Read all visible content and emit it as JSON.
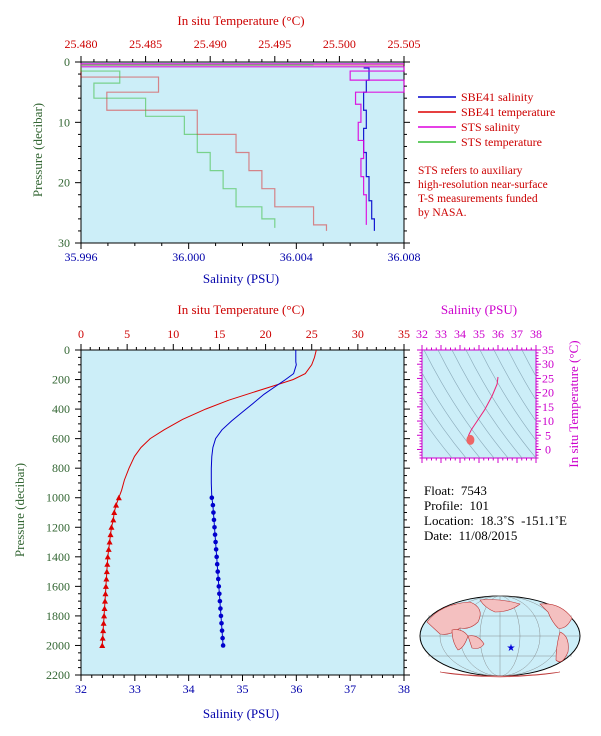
{
  "top_chart": {
    "top_axis_label": "In situ Temperature (°C)",
    "bottom_axis_label": "Salinity (PSU)",
    "left_axis_label": "Pressure (decibar)",
    "top_ticks": [
      "25.480",
      "25.485",
      "25.490",
      "25.495",
      "25.500",
      "25.505"
    ],
    "bottom_ticks": [
      "35.996",
      "36.000",
      "36.004",
      "36.008"
    ],
    "left_ticks": [
      "0",
      "10",
      "20",
      "30"
    ],
    "legend": [
      {
        "label": "SBE41 salinity",
        "color": "#0000cc"
      },
      {
        "label": "SBE41 temperature",
        "color": "#dd0000"
      },
      {
        "label": "STS salinity",
        "color": "#dd00dd"
      },
      {
        "label": "STS temperature",
        "color": "#33bb33"
      }
    ],
    "note_lines": [
      "STS refers to auxiliary",
      "high-resolution near-surface",
      "T-S measurements funded",
      "by NASA."
    ]
  },
  "main_chart": {
    "top_axis_label": "In situ Temperature (°C)",
    "bottom_axis_label": "Salinity (PSU)",
    "left_axis_label": "Pressure (decibar)",
    "top_ticks": [
      "0",
      "5",
      "10",
      "15",
      "20",
      "25",
      "30",
      "35"
    ],
    "bottom_ticks": [
      "32",
      "33",
      "34",
      "35",
      "36",
      "37",
      "38"
    ],
    "left_ticks": [
      "0",
      "200",
      "400",
      "600",
      "800",
      "1000",
      "1200",
      "1400",
      "1600",
      "1800",
      "2000",
      "2200"
    ]
  },
  "ts_chart": {
    "top_axis_label": "Salinity (PSU)",
    "right_axis_label": "In situ Temperature (°C)",
    "top_ticks": [
      "32",
      "33",
      "34",
      "35",
      "36",
      "37",
      "38"
    ],
    "right_ticks": [
      "0",
      "5",
      "10",
      "15",
      "20",
      "25",
      "30",
      "35"
    ]
  },
  "float_info": {
    "float": "Float:  7543",
    "profile": "Profile:  101",
    "location": "Location:  18.3˚S  -151.1˚E",
    "date": "Date:  11/08/2015"
  },
  "colors": {
    "plot_bg": "#cceef8",
    "temperature": "#dd0000",
    "salinity": "#0000cc",
    "sts_salinity": "#dd00dd",
    "sts_temperature": "#33bb33",
    "top_axis_text": "#cc0000",
    "bottom_axis_text": "#0000aa",
    "pressure_axis_text": "#336633",
    "ts_axis_text": "#cc00cc"
  },
  "chart_data": [
    {
      "type": "line",
      "title": "",
      "xlabel": "Salinity (PSU)",
      "x2label": "In situ Temperature (°C)",
      "ylabel": "Pressure (decibar)",
      "xlim": [
        35.996,
        36.008
      ],
      "x2lim": [
        25.48,
        25.505
      ],
      "ylim": [
        30,
        0
      ],
      "series": [
        {
          "name": "SBE41 salinity",
          "axis": "salinity",
          "points": [
            [
              36.0065,
              1
            ],
            [
              36.0067,
              3
            ],
            [
              36.0066,
              5
            ],
            [
              36.0065,
              8
            ],
            [
              36.0066,
              11
            ],
            [
              36.0065,
              15
            ],
            [
              36.0066,
              19
            ],
            [
              36.0067,
              23
            ],
            [
              36.0068,
              26
            ],
            [
              36.0069,
              28
            ]
          ]
        },
        {
          "name": "SBE41 temperature",
          "axis": "temperature",
          "points": [
            [
              25.505,
              0.5
            ],
            [
              25.48,
              2.5
            ],
            [
              25.486,
              5
            ],
            [
              25.482,
              8
            ],
            [
              25.489,
              12
            ],
            [
              25.492,
              15
            ],
            [
              25.493,
              18
            ],
            [
              25.494,
              21
            ],
            [
              25.495,
              24
            ],
            [
              25.498,
              27
            ],
            [
              25.499,
              28
            ]
          ]
        },
        {
          "name": "STS salinity",
          "axis": "salinity",
          "points": [
            [
              36.008,
              0.3
            ],
            [
              35.996,
              0.8
            ],
            [
              36.008,
              1.5
            ],
            [
              36.006,
              3
            ],
            [
              36.008,
              5
            ],
            [
              36.0062,
              7
            ],
            [
              36.0064,
              10
            ],
            [
              36.0063,
              13
            ],
            [
              36.0065,
              16
            ],
            [
              36.0064,
              19
            ],
            [
              36.0065,
              22
            ],
            [
              36.0066,
              25
            ],
            [
              36.0066,
              27
            ]
          ]
        },
        {
          "name": "STS temperature",
          "axis": "temperature",
          "points": [
            [
              25.498,
              0.5
            ],
            [
              25.48,
              1.5
            ],
            [
              25.483,
              3.5
            ],
            [
              25.481,
              6
            ],
            [
              25.485,
              9
            ],
            [
              25.488,
              12
            ],
            [
              25.489,
              15
            ],
            [
              25.49,
              18
            ],
            [
              25.491,
              21
            ],
            [
              25.492,
              24
            ],
            [
              25.494,
              26
            ],
            [
              25.495,
              27.5
            ]
          ]
        }
      ],
      "grid": false,
      "legend_position": "right"
    },
    {
      "type": "line",
      "title": "",
      "xlabel": "Salinity (PSU)",
      "x2label": "In situ Temperature (°C)",
      "ylabel": "Pressure (decibar)",
      "xlim": [
        32,
        38
      ],
      "x2lim": [
        0,
        35
      ],
      "ylim": [
        2200,
        0
      ],
      "series": [
        {
          "name": "Temperature",
          "axis": "temperature",
          "points": [
            [
              25.5,
              0
            ],
            [
              25.3,
              50
            ],
            [
              25.0,
              100
            ],
            [
              24.3,
              160
            ],
            [
              23.0,
              200
            ],
            [
              21.0,
              240
            ],
            [
              18.5,
              290
            ],
            [
              16.0,
              340
            ],
            [
              13.5,
              400
            ],
            [
              11.0,
              470
            ],
            [
              9.0,
              540
            ],
            [
              7.5,
              600
            ],
            [
              6.5,
              660
            ],
            [
              5.8,
              720
            ],
            [
              5.2,
              800
            ],
            [
              4.7,
              880
            ],
            [
              4.4,
              950
            ],
            [
              4.1,
              1000
            ],
            [
              3.8,
              1050
            ],
            [
              3.6,
              1100
            ],
            [
              3.5,
              1150
            ],
            [
              3.3,
              1200
            ],
            [
              3.2,
              1250
            ],
            [
              3.1,
              1300
            ],
            [
              3.0,
              1350
            ],
            [
              2.9,
              1400
            ],
            [
              2.85,
              1450
            ],
            [
              2.8,
              1500
            ],
            [
              2.75,
              1550
            ],
            [
              2.7,
              1600
            ],
            [
              2.65,
              1650
            ],
            [
              2.6,
              1700
            ],
            [
              2.55,
              1750
            ],
            [
              2.5,
              1800
            ],
            [
              2.45,
              1850
            ],
            [
              2.4,
              1900
            ],
            [
              2.35,
              1950
            ],
            [
              2.3,
              2000
            ]
          ]
        },
        {
          "name": "Salinity",
          "axis": "salinity",
          "points": [
            [
              35.99,
              0
            ],
            [
              35.99,
              80
            ],
            [
              36.0,
              100
            ],
            [
              35.95,
              160
            ],
            [
              35.8,
              200
            ],
            [
              35.6,
              250
            ],
            [
              35.4,
              300
            ],
            [
              35.2,
              360
            ],
            [
              35.0,
              420
            ],
            [
              34.8,
              480
            ],
            [
              34.62,
              540
            ],
            [
              34.5,
              600
            ],
            [
              34.45,
              660
            ],
            [
              34.43,
              720
            ],
            [
              34.42,
              800
            ],
            [
              34.42,
              900
            ],
            [
              34.43,
              1000
            ],
            [
              34.45,
              1050
            ],
            [
              34.46,
              1100
            ],
            [
              34.47,
              1150
            ],
            [
              34.48,
              1200
            ],
            [
              34.49,
              1250
            ],
            [
              34.5,
              1300
            ],
            [
              34.51,
              1350
            ],
            [
              34.52,
              1400
            ],
            [
              34.53,
              1450
            ],
            [
              34.54,
              1500
            ],
            [
              34.55,
              1550
            ],
            [
              34.56,
              1600
            ],
            [
              34.57,
              1650
            ],
            [
              34.58,
              1700
            ],
            [
              34.59,
              1750
            ],
            [
              34.6,
              1800
            ],
            [
              34.61,
              1850
            ],
            [
              34.62,
              1900
            ],
            [
              34.63,
              1950
            ],
            [
              34.64,
              2000
            ]
          ]
        }
      ],
      "grid": false
    },
    {
      "type": "line",
      "title": "",
      "xlabel": "Salinity (PSU)",
      "ylabel": "In situ Temperature (°C)",
      "xlim": [
        32,
        38
      ],
      "ylim": [
        -3,
        35
      ],
      "series": [
        {
          "name": "T-S",
          "points": [
            [
              36.0,
              25.5
            ],
            [
              35.95,
              23
            ],
            [
              35.7,
              19
            ],
            [
              35.3,
              14
            ],
            [
              34.9,
              10
            ],
            [
              34.6,
              7
            ],
            [
              34.45,
              5
            ],
            [
              34.42,
              4
            ],
            [
              34.5,
              3
            ],
            [
              34.6,
              2.3
            ]
          ]
        }
      ],
      "grid": true
    }
  ]
}
